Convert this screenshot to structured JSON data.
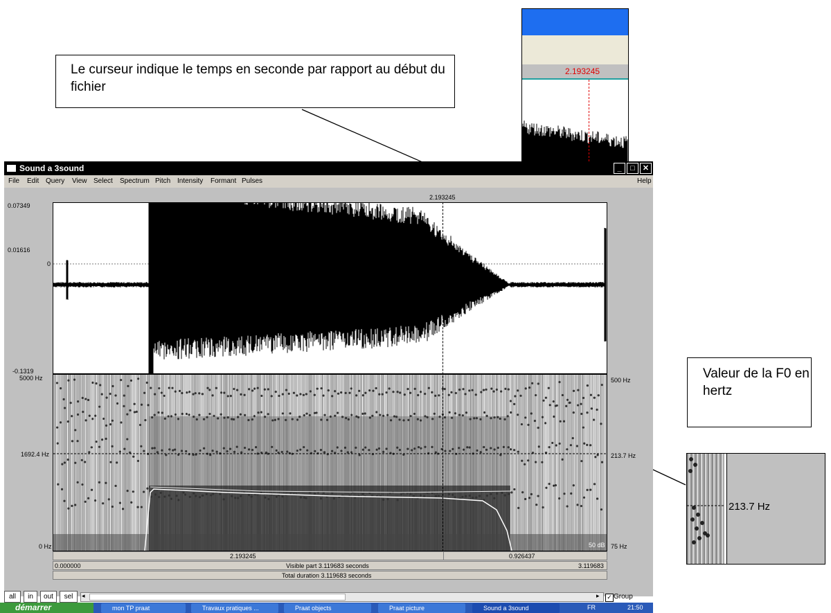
{
  "callouts": {
    "cursor_note": "Le curseur indique le temps en seconde par rapport au début du fichier",
    "f0_note": "Valeur de la F0 en hertz"
  },
  "zoom_cursor": {
    "time": "2.193245"
  },
  "zoom_pitch": {
    "value": "213.7 Hz"
  },
  "window": {
    "title": "Sound a 3sound",
    "menu": [
      "File",
      "Edit",
      "Query",
      "View",
      "Select",
      "Spectrum",
      "Pitch",
      "Intensity",
      "Formant",
      "Pulses"
    ],
    "help": "Help",
    "cursor_time": "2.193245",
    "wave_axis": {
      "max": "0.07349",
      "cursor_amp": "0.01616",
      "zero": "0",
      "min": "-0.1319"
    },
    "spec_axis": {
      "left_top": "5000 Hz",
      "left_mid": "1692.4 Hz",
      "left_bottom": "0 Hz",
      "right_top": "500 Hz",
      "right_mid": "213.7 Hz",
      "right_bottom": "75 Hz",
      "db": "50 dB"
    },
    "time_bar": {
      "left_segment": "2.193245",
      "right_segment": "0.926437"
    },
    "visible_bar": {
      "start": "0.000000",
      "label": "Visible part 3.119683 seconds",
      "end": "3.119683"
    },
    "total_bar": "Total duration 3.119683 seconds",
    "buttons": {
      "all": "all",
      "in": "in",
      "out": "out",
      "sel": "sel"
    },
    "group_label": "Group",
    "group_checked": true
  },
  "taskbar": {
    "start": "démarrer",
    "items": [
      "mon TP praat",
      "Travaux pratiques ...",
      "Praat objects",
      "Praat picture",
      "Sound a 3sound"
    ],
    "lang": "FR",
    "clock": "21:50"
  }
}
